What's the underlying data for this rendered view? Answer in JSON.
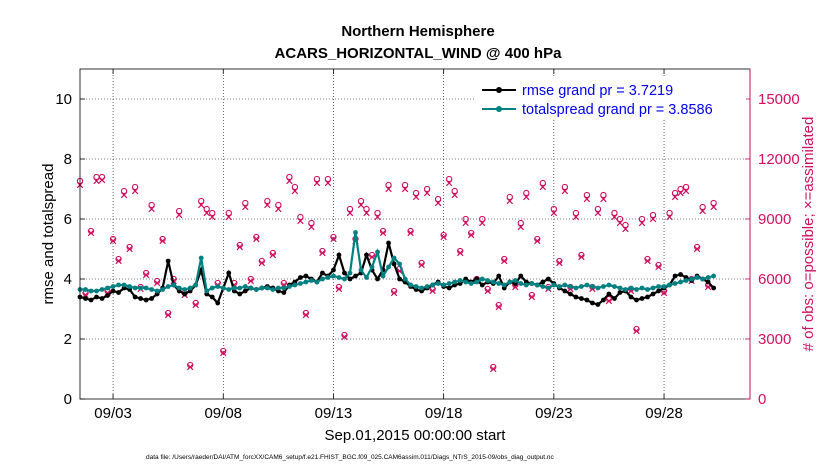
{
  "chart_data": {
    "type": "line",
    "title": "Northern Hemisphere",
    "subtitle": "ACARS_HORIZONTAL_WIND @ 400 hPa",
    "xlabel": "Sep.01,2015 00:00:00 start",
    "ylabel_left": "rmse and totalspread",
    "ylabel_right": "# of obs: o=possible; ×=assimilated",
    "xlim": [
      0.5,
      30.9
    ],
    "ylim_left": [
      0,
      11
    ],
    "ylim_right": [
      0,
      16500
    ],
    "x_tick_values": [
      2,
      7,
      12,
      17,
      22,
      27
    ],
    "x_tick_labels": [
      "09/03",
      "09/08",
      "09/13",
      "09/18",
      "09/23",
      "09/28"
    ],
    "y_left_ticks": [
      0,
      2,
      4,
      6,
      8,
      10
    ],
    "y_left_tick_labels": [
      "0",
      "2",
      "4",
      "6",
      "8",
      "10"
    ],
    "y_right_ticks": [
      0,
      3000,
      6000,
      9000,
      12000,
      15000
    ],
    "y_right_tick_labels": [
      "0",
      "3000",
      "6000",
      "9000",
      "12000",
      "15000"
    ],
    "legend_position": "top-right",
    "grid": true,
    "series": [
      {
        "name": "rmse grand pr = 3.7219",
        "color": "#000000",
        "marker": "dot",
        "step_days": 0.25,
        "start_day": 0.5,
        "values": [
          3.4,
          3.35,
          3.3,
          3.4,
          3.35,
          3.45,
          3.6,
          3.55,
          3.7,
          3.65,
          3.4,
          3.35,
          3.3,
          3.35,
          3.5,
          3.7,
          4.6,
          3.8,
          3.6,
          3.5,
          3.6,
          3.8,
          4.3,
          3.5,
          3.4,
          3.2,
          3.7,
          4.2,
          3.6,
          3.5,
          3.6,
          3.7,
          3.65,
          3.7,
          3.75,
          3.7,
          3.6,
          3.55,
          3.8,
          3.9,
          4.05,
          4.1,
          4.0,
          3.9,
          4.2,
          4.1,
          4.3,
          4.8,
          4.2,
          4.0,
          4.1,
          4.2,
          4.8,
          4.3,
          4.0,
          4.3,
          5.2,
          4.5,
          4.0,
          3.9,
          3.75,
          3.65,
          3.6,
          3.7,
          3.8,
          3.9,
          3.75,
          3.7,
          3.8,
          3.85,
          4.0,
          3.9,
          4.0,
          3.8,
          3.9,
          3.85,
          4.1,
          3.7,
          3.9,
          3.85,
          4.1,
          3.9,
          3.85,
          3.8,
          3.9,
          4.0,
          3.85,
          3.7,
          3.6,
          3.5,
          3.4,
          3.35,
          3.3,
          3.2,
          3.15,
          3.3,
          3.5,
          3.35,
          3.55,
          3.6,
          3.4,
          3.3,
          3.35,
          3.4,
          3.5,
          3.6,
          3.7,
          3.8,
          4.1,
          4.15,
          4.05,
          3.95,
          4.1,
          4.0,
          3.9,
          3.7
        ]
      },
      {
        "name": "totalspread grand pr = 3.8586",
        "color": "#008080",
        "marker": "dot",
        "step_days": 0.25,
        "start_day": 0.5,
        "values": [
          3.65,
          3.65,
          3.6,
          3.6,
          3.65,
          3.7,
          3.75,
          3.8,
          3.8,
          3.75,
          3.7,
          3.7,
          3.7,
          3.65,
          3.6,
          3.65,
          3.75,
          3.8,
          3.7,
          3.65,
          3.7,
          3.8,
          4.7,
          3.6,
          3.7,
          3.75,
          3.7,
          3.65,
          3.7,
          3.7,
          3.75,
          3.7,
          3.65,
          3.7,
          3.7,
          3.65,
          3.7,
          3.7,
          3.75,
          3.8,
          3.85,
          3.9,
          3.95,
          3.9,
          4.0,
          4.05,
          4.1,
          4.05,
          4.0,
          4.2,
          5.55,
          4.3,
          4.05,
          4.4,
          4.9,
          4.1,
          4.4,
          4.7,
          4.5,
          4.0,
          3.8,
          3.75,
          3.7,
          3.75,
          3.8,
          3.85,
          3.8,
          3.85,
          3.9,
          3.95,
          3.9,
          3.85,
          3.9,
          4.0,
          3.95,
          3.9,
          3.85,
          3.8,
          3.9,
          3.95,
          3.85,
          3.8,
          3.85,
          3.8,
          3.75,
          3.7,
          3.8,
          3.75,
          3.8,
          3.75,
          3.7,
          3.75,
          3.8,
          3.75,
          3.7,
          3.75,
          3.8,
          3.75,
          3.7,
          3.65,
          3.7,
          3.65,
          3.7,
          3.65,
          3.7,
          3.75,
          3.75,
          3.8,
          3.85,
          3.9,
          3.95,
          4.0,
          4.05,
          4.0,
          4.05,
          4.1
        ]
      },
      {
        "name": "possible obs (o)",
        "axis": "right",
        "color": "#d01060",
        "marker": "circle",
        "step_days": 0.25,
        "start_day": 0.5,
        "values": [
          10900,
          5300,
          8400,
          11100,
          11100,
          5400,
          8000,
          7000,
          10400,
          7600,
          10600,
          5600,
          6300,
          9700,
          5900,
          8000,
          4300,
          6000,
          9400,
          5300,
          1700,
          4800,
          9900,
          9500,
          9300,
          5800,
          2400,
          9300,
          5800,
          7700,
          9800,
          6000,
          8100,
          6900,
          9900,
          7300,
          9700,
          5800,
          11100,
          10600,
          9100,
          4300,
          8800,
          11000,
          7400,
          11000,
          8100,
          5600,
          3200,
          9500,
          8000,
          9900,
          9500,
          7200,
          9300,
          8400,
          10700,
          5400,
          6500,
          10700,
          8400,
          10300,
          6800,
          10500,
          5500,
          10000,
          8200,
          11000,
          10400,
          7400,
          9000,
          8300,
          6000,
          9000,
          5500,
          1600,
          4700,
          7000,
          10100,
          5700,
          8800,
          10300,
          5200,
          8000,
          10800,
          5600,
          9500,
          6900,
          10600,
          5600,
          9300,
          7200,
          10200,
          5600,
          9500,
          10200,
          5000,
          9300,
          9000,
          8700,
          5500,
          3500,
          9000,
          7000,
          9200,
          6700,
          5400,
          9300,
          10300,
          10500,
          10600,
          6000,
          7600,
          9600,
          5700,
          9800
        ]
      },
      {
        "name": "assimilated obs (×)",
        "axis": "right",
        "color": "#d01060",
        "marker": "x",
        "step_days": 0.25,
        "start_day": 0.5,
        "values": [
          10700,
          5200,
          8300,
          10900,
          10950,
          5300,
          7900,
          6900,
          10200,
          7500,
          10400,
          5500,
          6200,
          9500,
          5800,
          7900,
          4200,
          5900,
          9200,
          5200,
          1600,
          4700,
          9700,
          9300,
          9100,
          5700,
          2300,
          9100,
          5700,
          7600,
          9600,
          5900,
          8000,
          6800,
          9700,
          7200,
          9500,
          5700,
          10900,
          10400,
          8900,
          4200,
          8600,
          10800,
          7300,
          10800,
          8000,
          5500,
          3100,
          9300,
          7900,
          9700,
          9300,
          7100,
          9100,
          8300,
          10500,
          5300,
          6400,
          10500,
          8300,
          10100,
          6700,
          10300,
          5400,
          9800,
          8100,
          10800,
          10200,
          7300,
          8800,
          8200,
          5900,
          8800,
          5400,
          1500,
          4600,
          6900,
          9900,
          5600,
          8600,
          10100,
          5100,
          7900,
          10600,
          5500,
          9300,
          6800,
          10400,
          5500,
          9100,
          7100,
          10000,
          5500,
          9300,
          10000,
          4900,
          9100,
          8800,
          8500,
          5400,
          3400,
          8800,
          6900,
          9000,
          6600,
          5300,
          9100,
          10100,
          10300,
          10400,
          5900,
          7500,
          9400,
          5600,
          9600
        ]
      }
    ],
    "legend": [
      "rmse grand pr = 3.7219",
      "totalspread grand pr = 3.8586"
    ]
  },
  "footer": "data file: /Users/raeder/DAI/ATM_forcXX/CAM6_setup/f.e21.FHIST_BGC.f09_025.CAM6assim.011/Diags_NTrS_2015-09/obs_diag_output.nc"
}
